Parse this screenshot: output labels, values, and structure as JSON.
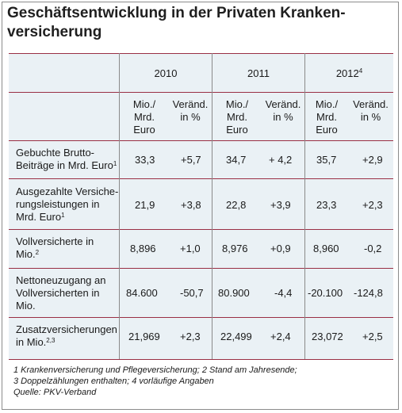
{
  "title": {
    "line1": "Geschäftsentwicklung in der Privaten Kranken-",
    "line2": "versicherung"
  },
  "years": [
    {
      "label": "2010",
      "sup": ""
    },
    {
      "label": "2011",
      "sup": ""
    },
    {
      "label": "2012",
      "sup": "4"
    }
  ],
  "subheaders": {
    "abs_line1": "Mio./",
    "abs_line2": "Mrd.",
    "abs_line3": "Euro",
    "chg_line1": "Veränd.",
    "chg_line2": "in %"
  },
  "rows": [
    {
      "label_lines": [
        "Gebuchte Brutto-",
        "Beiträge in Mrd. Euro"
      ],
      "sup": "1",
      "values": [
        "33,3",
        "+5,7",
        "34,7",
        "+ 4,2",
        "35,7",
        "+2,9"
      ]
    },
    {
      "label_lines": [
        "Ausgezahlte Versiche-",
        "rungsleistungen in",
        "Mrd. Euro"
      ],
      "sup": "1",
      "values": [
        "21,9",
        "+3,8",
        "22,8",
        "+3,9",
        "23,3",
        "+2,3"
      ]
    },
    {
      "label_lines": [
        "Vollversicherte in",
        "Mio."
      ],
      "sup": "2",
      "values": [
        "8,896",
        "+1,0",
        "8,976",
        "+0,9",
        "8,960",
        "-0,2"
      ]
    },
    {
      "label_lines": [
        "Nettoneuzugang an",
        "Vollversicherten in",
        "Mio."
      ],
      "sup": "",
      "values": [
        "84.600",
        "-50,7",
        "80.900",
        "-4,4",
        "-20.100",
        "-124,8"
      ]
    },
    {
      "label_lines": [
        "Zusatzversicherungen",
        "in Mio."
      ],
      "sup": "2,3",
      "values": [
        "21,969",
        "+2,3",
        "22,499",
        "+2,4",
        "23,072",
        "+2,5"
      ]
    }
  ],
  "footnotes": {
    "line1": "1 Krankenversicherung und Pflegeversicherung; 2 Stand am Jahresende;",
    "line2": "3 Doppelzählungen enthalten; 4 vorläufige Angaben",
    "line3": "Quelle: PKV-Verband"
  }
}
